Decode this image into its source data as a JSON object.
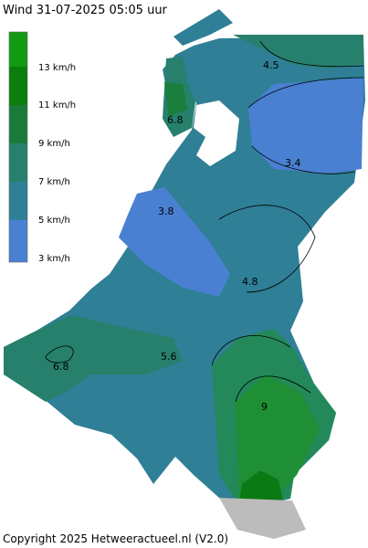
{
  "title": "Wind 31-07-2025  05:05 uur",
  "legend": [
    "13 km/h",
    "11 km/h",
    "9 km/h",
    "7 km/h",
    "5 km/h",
    "3 km/h"
  ],
  "contour_labels": [
    "4.5",
    "6.8",
    "3.4",
    "3.8",
    "4.8",
    "5.6",
    "6.8",
    "9"
  ],
  "footer": "Copyright 2025 Hetweeractueel.nl (V2.0)"
}
